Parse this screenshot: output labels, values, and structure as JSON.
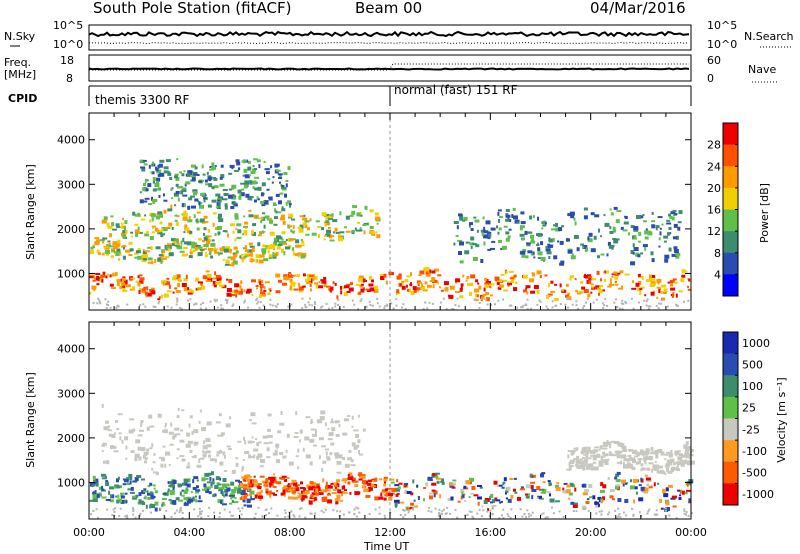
{
  "header": {
    "title": "South Pole Station (fitACF)",
    "beam": "Beam 00",
    "date": "04/Mar/2016"
  },
  "status_panels": {
    "nsky_label": "N.Sky",
    "nsky_ticks": [
      "10^5",
      "10^0"
    ],
    "nsearch_label": "N.Search",
    "nsearch_ticks": [
      "10^5",
      "10^0"
    ],
    "freq_label": "Freq.",
    "freq_unit": "[MHz]",
    "freq_ticks": [
      "18",
      "8"
    ],
    "nave_label": "Nave",
    "nave_ticks": [
      "60",
      "0"
    ],
    "cpid_label": "CPID",
    "cpid_segments": [
      {
        "label": "themis 3300 RF",
        "start_hour": 0,
        "end_hour": 12
      },
      {
        "label": "normal (fast) 151 RF",
        "start_hour": 12,
        "end_hour": 24
      }
    ]
  },
  "x_axis": {
    "label": "Time UT",
    "ticks": [
      "00:00",
      "04:00",
      "08:00",
      "12:00",
      "16:00",
      "20:00",
      "00:00"
    ],
    "range_hours": [
      0,
      24
    ]
  },
  "colors": {
    "power": [
      "#0000ff",
      "#2a4bb0",
      "#3d8c6e",
      "#5fbf4a",
      "#f0d000",
      "#ff9a00",
      "#ff5000",
      "#ee0000"
    ],
    "velocity": [
      "#ee0000",
      "#ff5a00",
      "#ff9a20",
      "#c8c8c0",
      "#5fbf4a",
      "#3d8c6e",
      "#2a4bb0",
      "#1a2ab0"
    ],
    "ground_scatter": "#b4b4b4"
  },
  "chart_data": [
    {
      "type": "heatmap",
      "name": "power_panel",
      "ylabel": "Slant Range [km]",
      "xlabel": "",
      "ylim": [
        180,
        4600
      ],
      "xlim_hours": [
        0,
        24
      ],
      "y_ticks": [
        1000,
        2000,
        3000,
        4000
      ],
      "colorbar": {
        "label": "Power [dB]",
        "range": [
          0,
          32
        ],
        "ticks": [
          4,
          8,
          12,
          16,
          20,
          24,
          28
        ]
      },
      "regions": [
        {
          "t": [
            0.0,
            12.0
          ],
          "r": [
            550,
            950
          ],
          "level": "high",
          "note": ""
        },
        {
          "t": [
            0.0,
            8.5
          ],
          "r": [
            1300,
            1700
          ],
          "level": "mid"
        },
        {
          "t": [
            0.5,
            11.5
          ],
          "r": [
            1800,
            2400
          ],
          "level": "mid"
        },
        {
          "t": [
            2.0,
            8.0
          ],
          "r": [
            2500,
            3500
          ],
          "level": "low"
        },
        {
          "t": [
            12.0,
            24.0
          ],
          "r": [
            500,
            1000
          ],
          "level": "high"
        },
        {
          "t": [
            14.5,
            23.5
          ],
          "r": [
            1300,
            2400
          ],
          "level": "low"
        }
      ]
    },
    {
      "type": "heatmap",
      "name": "velocity_panel",
      "ylabel": "Slant Range [km]",
      "xlabel": "Time UT",
      "ylim": [
        180,
        4600
      ],
      "xlim_hours": [
        0,
        24
      ],
      "y_ticks": [
        1000,
        2000,
        3000,
        4000
      ],
      "colorbar": {
        "label": "Velocity [m s⁻¹]",
        "range": [
          -1000,
          1000
        ],
        "ticks": [
          1000,
          500,
          100,
          25,
          -25,
          -100,
          -500,
          -1000
        ]
      },
      "regions": [
        {
          "t": [
            0.0,
            6.5
          ],
          "r": [
            500,
            1100
          ],
          "level": "positive"
        },
        {
          "t": [
            0.5,
            11.0
          ],
          "r": [
            1300,
            2600
          ],
          "level": "ground"
        },
        {
          "t": [
            6.0,
            12.0
          ],
          "r": [
            600,
            1100
          ],
          "level": "negative"
        },
        {
          "t": [
            12.0,
            24.0
          ],
          "r": [
            500,
            1100
          ],
          "level": "mixed"
        },
        {
          "t": [
            19.0,
            24.0
          ],
          "r": [
            1300,
            1800
          ],
          "level": "ground"
        }
      ]
    }
  ]
}
